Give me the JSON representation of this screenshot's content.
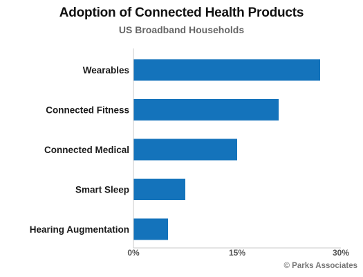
{
  "chart_data": {
    "type": "bar",
    "orientation": "horizontal",
    "title": "Adoption of Connected Health Products",
    "subtitle": "US Broadband Households",
    "categories": [
      "Wearables",
      "Connected Fitness",
      "Connected Medical",
      "Smart Sleep",
      "Hearing Augmentation"
    ],
    "values": [
      27,
      21,
      15,
      7.5,
      5
    ],
    "unit": "%",
    "xlim": [
      0,
      30
    ],
    "xticks": [
      "0%",
      "15%",
      "30%"
    ],
    "grid": false,
    "legend": "none",
    "bar_color": "#1473bb",
    "axis_color": "#c8c8c8"
  },
  "credit": "© Parks Associates"
}
